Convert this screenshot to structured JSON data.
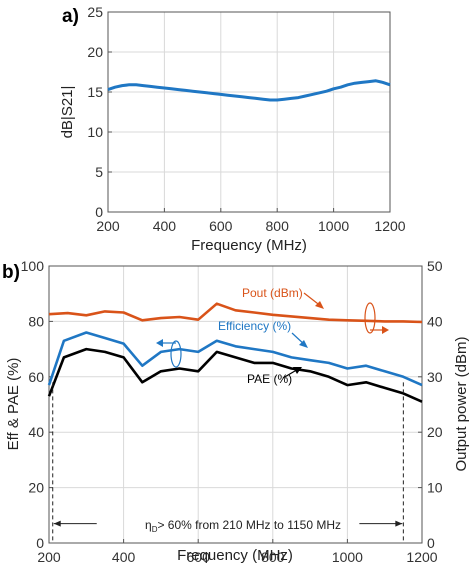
{
  "chart_data": [
    {
      "type": "line",
      "panel_label": "a)",
      "xlabel": "Frequency (MHz)",
      "ylabel": "dB|S21|",
      "xlim": [
        200,
        1200
      ],
      "ylim": [
        0,
        25
      ],
      "x_ticks": [
        200,
        400,
        600,
        800,
        1000,
        1200
      ],
      "y_ticks": [
        0,
        5,
        10,
        15,
        20,
        25
      ],
      "grid": true,
      "series": [
        {
          "color": "#1f77c4",
          "x": [
            200,
            225,
            250,
            275,
            300,
            325,
            350,
            375,
            400,
            425,
            450,
            475,
            500,
            525,
            550,
            575,
            600,
            625,
            650,
            675,
            700,
            725,
            750,
            775,
            800,
            825,
            850,
            875,
            900,
            925,
            950,
            975,
            1000,
            1025,
            1050,
            1075,
            1100,
            1125,
            1150,
            1175,
            1200
          ],
          "y": [
            15.3,
            15.6,
            15.8,
            15.9,
            15.9,
            15.8,
            15.7,
            15.6,
            15.5,
            15.4,
            15.3,
            15.2,
            15.1,
            15.0,
            14.9,
            14.8,
            14.7,
            14.6,
            14.5,
            14.4,
            14.3,
            14.2,
            14.1,
            14.0,
            14.0,
            14.1,
            14.2,
            14.3,
            14.5,
            14.7,
            14.9,
            15.1,
            15.4,
            15.6,
            15.9,
            16.1,
            16.2,
            16.3,
            16.4,
            16.2,
            15.9
          ]
        }
      ]
    },
    {
      "type": "line",
      "panel_label": "b)",
      "xlabel": "Frequency (MHz)",
      "ylabel": "Eff & PAE (%)",
      "ylabel_right": "Output power (dBm)",
      "xlim": [
        200,
        1200
      ],
      "ylim": [
        0,
        100
      ],
      "ylim_right": [
        0,
        50
      ],
      "x_ticks": [
        200,
        400,
        600,
        800,
        1000,
        1200
      ],
      "y_ticks": [
        0,
        20,
        40,
        60,
        80,
        100
      ],
      "y_ticks_right": [
        0,
        10,
        20,
        30,
        40,
        50
      ],
      "grid": true,
      "series": [
        {
          "name": "Pout (dBm)",
          "axis": "right",
          "color": "#d95319",
          "x": [
            200,
            250,
            300,
            350,
            400,
            450,
            500,
            550,
            600,
            650,
            700,
            750,
            800,
            850,
            900,
            950,
            1000,
            1050,
            1100,
            1150,
            1200
          ],
          "y": [
            41.3,
            41.5,
            41.1,
            41.8,
            41.6,
            40.2,
            40.6,
            40.8,
            40.3,
            43.2,
            42.0,
            41.6,
            41.2,
            40.9,
            40.6,
            40.3,
            40.2,
            40.1,
            40.0,
            40.0,
            39.9
          ]
        },
        {
          "name": "Efficiency (%)",
          "axis": "left",
          "color": "#1f77c4",
          "x": [
            200,
            240,
            300,
            350,
            400,
            450,
            500,
            550,
            600,
            650,
            700,
            750,
            800,
            850,
            900,
            950,
            1000,
            1050,
            1100,
            1150,
            1200
          ],
          "y": [
            57,
            73,
            76,
            74,
            72,
            64,
            69,
            70,
            69,
            73,
            71,
            70,
            69,
            67,
            66,
            65,
            63,
            64,
            62,
            60,
            57
          ]
        },
        {
          "name": "PAE (%)",
          "axis": "left",
          "color": "#000000",
          "x": [
            200,
            240,
            300,
            350,
            400,
            450,
            500,
            550,
            600,
            650,
            700,
            750,
            800,
            850,
            900,
            950,
            1000,
            1050,
            1100,
            1150,
            1200
          ],
          "y": [
            53,
            67,
            70,
            69,
            67,
            58,
            62,
            63,
            62,
            69,
            67,
            65,
            65,
            63,
            62,
            60,
            57,
            58,
            56,
            54,
            51
          ]
        }
      ],
      "annotations": {
        "eta_symbol": "η",
        "eta_subscript": "D",
        "range_text": "> 60% from 210 MHz to 1150 MHz",
        "range_start_mhz": 210,
        "range_end_mhz": 1150,
        "range_level_percent": 7
      }
    }
  ]
}
